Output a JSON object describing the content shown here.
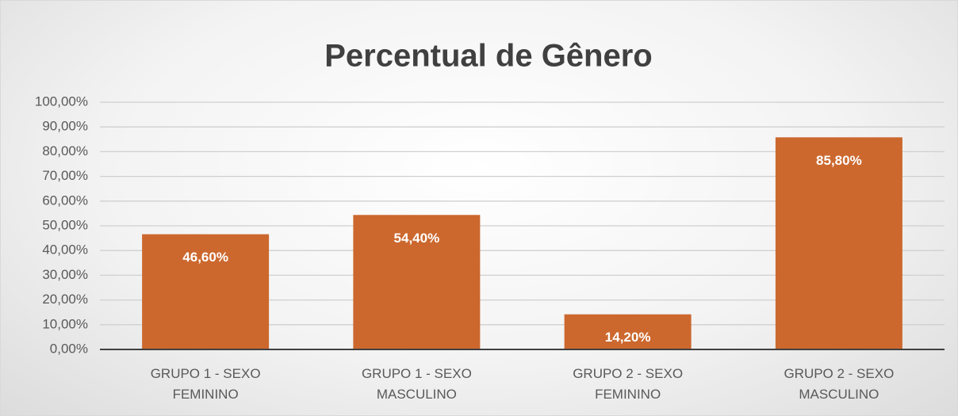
{
  "chart_data": {
    "type": "bar",
    "title": "Percentual de Gênero",
    "categories": [
      "GRUPO 1 - SEXO FEMININO",
      "GRUPO 1 - SEXO MASCULINO",
      "GRUPO 2 - SEXO FEMININO",
      "GRUPO 2 - SEXO MASCULINO"
    ],
    "values": [
      46.6,
      54.4,
      14.2,
      85.8
    ],
    "value_labels": [
      "46,60%",
      "54,40%",
      "14,20%",
      "85,80%"
    ],
    "color": "#cc682e",
    "ylim": [
      0,
      100
    ],
    "yticks": [
      {
        "value": 0,
        "label": "0,00%"
      },
      {
        "value": 10,
        "label": "10,00%"
      },
      {
        "value": 20,
        "label": "20,00%"
      },
      {
        "value": 30,
        "label": "30,00%"
      },
      {
        "value": 40,
        "label": "40,00%"
      },
      {
        "value": 50,
        "label": "50,00%"
      },
      {
        "value": 60,
        "label": "60,00%"
      },
      {
        "value": 70,
        "label": "70,00%"
      },
      {
        "value": 80,
        "label": "80,00%"
      },
      {
        "value": 90,
        "label": "90,00%"
      },
      {
        "value": 100,
        "label": "100,00%"
      }
    ],
    "grid": true
  }
}
